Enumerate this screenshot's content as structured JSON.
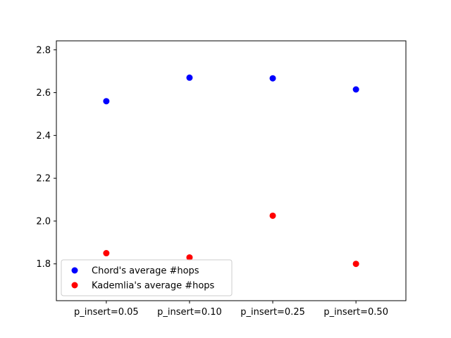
{
  "chart_data": {
    "type": "scatter",
    "categories": [
      "p_insert=0.05",
      "p_insert=0.10",
      "p_insert=0.25",
      "p_insert=0.50"
    ],
    "series": [
      {
        "name": "Chord's average #hops",
        "color": "#0000ff",
        "values": [
          2.56,
          2.67,
          2.667,
          2.615
        ]
      },
      {
        "name": "Kademlia's average #hops",
        "color": "#ff0000",
        "values": [
          1.85,
          1.83,
          2.025,
          1.8
        ]
      }
    ],
    "title": "",
    "xlabel": "",
    "ylabel": "",
    "ylim": [
      1.628,
      2.842
    ],
    "yticks": [
      1.8,
      2.0,
      2.2,
      2.4,
      2.6,
      2.8
    ],
    "ytick_labels": [
      "1.8",
      "2.0",
      "2.2",
      "2.4",
      "2.6",
      "2.8"
    ],
    "xlim": [
      -0.6,
      3.6
    ],
    "grid": false,
    "legend_position": "lower-left"
  }
}
